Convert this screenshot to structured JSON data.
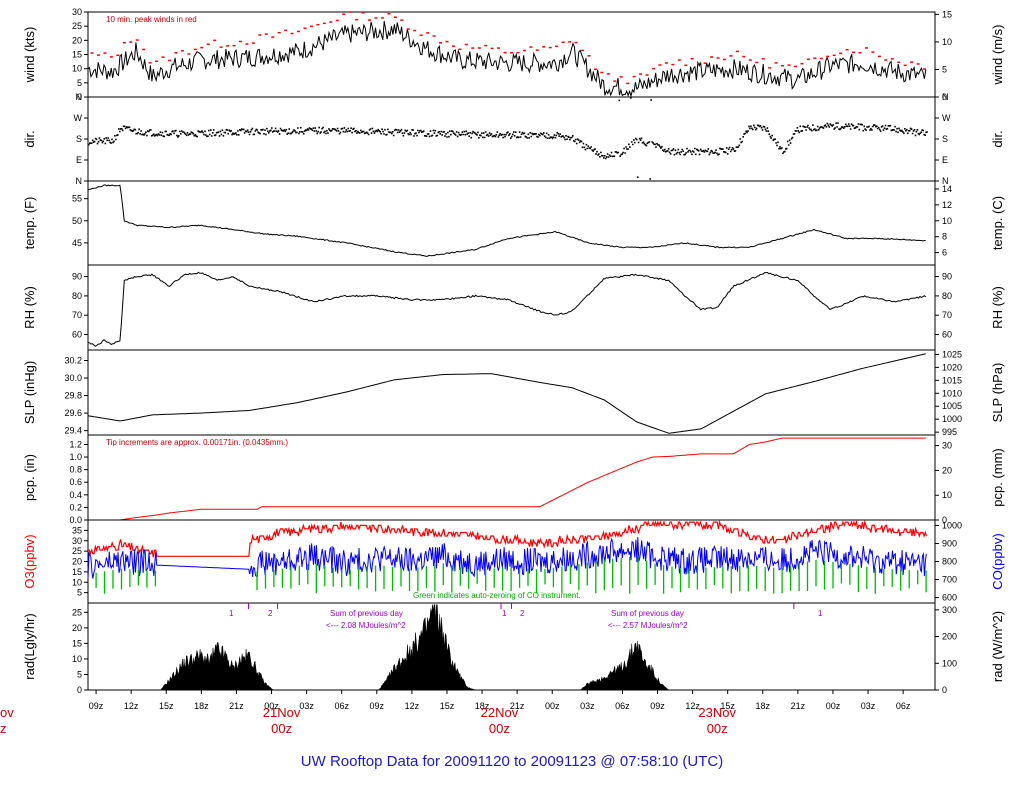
{
  "footer_title": "UW Rooftop Data for 20091120  to  20091123 @ 07:58:10  (UTC)",
  "colors": {
    "series": "#000000",
    "peak": "#ff0000",
    "precip": "#ff0000",
    "o3": "#ff0000",
    "co": "#0000ff",
    "co_zero": "#00bb00",
    "note_purple": "#9900cc",
    "day_label": "#cc0000",
    "footer": "#1a1acc"
  },
  "x_axis": {
    "hour_labels": [
      "09z",
      "12z",
      "15z",
      "18z",
      "21z",
      "00z",
      "03z",
      "06z",
      "09z",
      "12z",
      "15z",
      "18z",
      "21z",
      "00z",
      "03z",
      "06z",
      "09z",
      "12z",
      "15z",
      "18z",
      "21z",
      "00z",
      "03z",
      "06z"
    ],
    "day_labels": [
      {
        "date": "21Nov",
        "hour": "00z"
      },
      {
        "date": "22Nov",
        "hour": "00z"
      },
      {
        "date": "23Nov",
        "hour": "00z"
      }
    ],
    "cut_label_left": {
      "date": "ov",
      "hour": "z"
    }
  },
  "notes": {
    "wind": "10 min. peak winds in red",
    "pcp": "Tip increments are approx. 0.00171in. (0.0435mm.)",
    "co_zero": "Green indicates auto-zeroing of CO instrument.",
    "rad_sum_1_title": "Sum of previous day",
    "rad_sum_1_value": "<--- 2.08 MJoules/m^2",
    "rad_sum_2_title": "Sum of previous day",
    "rad_sum_2_value": "<--- 2.57 MJoules/m^2",
    "rad_markers": [
      "1",
      "2",
      "1",
      "2",
      "1"
    ]
  },
  "chart_data": [
    {
      "type": "line",
      "name": "wind",
      "ylabel": "wind (kts)",
      "ylabel_right": "wind (m/s)",
      "ylim": [
        0,
        30
      ],
      "left_ticks": [
        "0",
        "5",
        "10",
        "15",
        "20",
        "25",
        "30"
      ],
      "right_ticks": [
        "0",
        "5",
        "10",
        "15"
      ],
      "x_hours": [
        0,
        3,
        6,
        8,
        10,
        14,
        20,
        26,
        32,
        38,
        42,
        46,
        52,
        58,
        60,
        64,
        68,
        72,
        76,
        80,
        84,
        88,
        92,
        96,
        100,
        104
      ],
      "series": [
        {
          "values": [
            10,
            9,
            16,
            7,
            10,
            13,
            14,
            16,
            22,
            24,
            17,
            13,
            12,
            12,
            16,
            4,
            3,
            8,
            9,
            10,
            8,
            6,
            11,
            12,
            9,
            7
          ]
        },
        {
          "values": [
            15,
            14,
            22,
            11,
            14,
            18,
            20,
            23,
            29,
            28,
            22,
            18,
            16,
            17,
            21,
            7,
            6,
            12,
            13,
            15,
            12,
            10,
            16,
            17,
            13,
            11
          ]
        }
      ]
    },
    {
      "type": "scatter",
      "name": "dir",
      "ylabel": "dir.",
      "ylabel_right": "dir.",
      "left_ticks": [
        "N",
        "E",
        "S",
        "W",
        "N"
      ],
      "right_ticks": [
        "N",
        "E",
        "S",
        "W",
        "N"
      ],
      "x_hours": [
        0,
        3,
        4,
        6,
        8,
        12,
        20,
        30,
        40,
        50,
        58,
        60,
        62,
        64,
        66,
        68,
        70,
        72,
        78,
        80,
        82,
        84,
        86,
        88,
        92,
        100,
        104
      ],
      "values": [
        172,
        175,
        230,
        215,
        210,
        205,
        215,
        220,
        210,
        200,
        200,
        185,
        140,
        110,
        120,
        180,
        160,
        130,
        130,
        135,
        235,
        230,
        130,
        225,
        240,
        225,
        205
      ]
    },
    {
      "type": "line",
      "name": "temp",
      "ylabel": "temp. (F)",
      "ylabel_right": "temp. (C)",
      "ylim": [
        40,
        59
      ],
      "left_ticks": [
        "45",
        "50",
        "55"
      ],
      "right_ticks": [
        "6",
        "8",
        "10",
        "12",
        "14"
      ],
      "x_hours": [
        0,
        2,
        4,
        4.5,
        6,
        10,
        14,
        18,
        22,
        26,
        32,
        38,
        42,
        48,
        52,
        58,
        62,
        66,
        70,
        74,
        78,
        82,
        86,
        90,
        94,
        98,
        104
      ],
      "values": [
        57,
        58,
        58,
        50,
        49,
        48.5,
        49,
        48,
        47,
        46.5,
        45,
        43,
        42,
        43.5,
        46,
        47.5,
        45,
        44,
        44,
        45,
        44,
        44,
        46,
        48,
        46,
        46,
        45.5
      ]
    },
    {
      "type": "line",
      "name": "rh",
      "ylabel": "RH (%)",
      "ylabel_right": "RH (%)",
      "ylim": [
        52,
        96
      ],
      "left_ticks": [
        "60",
        "70",
        "80",
        "90"
      ],
      "right_ticks": [
        "60",
        "70",
        "80",
        "90"
      ],
      "x_hours": [
        0,
        1,
        2,
        3,
        4,
        4.5,
        6,
        8,
        10,
        12,
        14,
        16,
        18,
        20,
        24,
        28,
        32,
        36,
        40,
        44,
        48,
        52,
        56,
        58,
        60,
        64,
        68,
        72,
        74,
        76,
        78,
        80,
        84,
        88,
        90,
        92,
        94,
        96,
        100,
        104
      ],
      "values": [
        56,
        54,
        57,
        55,
        57,
        88,
        90,
        91,
        85,
        91,
        92,
        88,
        90,
        85,
        82,
        77,
        80,
        80,
        78,
        78,
        80,
        78,
        72,
        70,
        72,
        89,
        91,
        88,
        80,
        73,
        74,
        85,
        92,
        88,
        80,
        73,
        76,
        80,
        77,
        80
      ]
    },
    {
      "type": "line",
      "name": "slp",
      "ylabel": "SLP (inHg)",
      "ylabel_right": "SLP (hPa)",
      "ylim": [
        29.35,
        30.32
      ],
      "left_ticks": [
        "29.4",
        "29.6",
        "29.8",
        "30.0",
        "30.2"
      ],
      "right_ticks": [
        "995",
        "1000",
        "1005",
        "1010",
        "1015",
        "1020",
        "1025"
      ],
      "x_hours": [
        0,
        4,
        8,
        14,
        20,
        26,
        32,
        38,
        44,
        50,
        56,
        60,
        64,
        68,
        72,
        76,
        80,
        84,
        90,
        96,
        104
      ],
      "values": [
        29.57,
        29.51,
        29.58,
        29.6,
        29.63,
        29.72,
        29.84,
        29.98,
        30.04,
        30.05,
        29.95,
        29.89,
        29.75,
        29.5,
        29.37,
        29.42,
        29.62,
        29.82,
        29.96,
        30.11,
        30.28
      ]
    },
    {
      "type": "line",
      "name": "pcp",
      "ylabel": "pcp. (in)",
      "ylabel_right": "pcp. (mm)",
      "ylim": [
        0,
        1.35
      ],
      "left_ticks": [
        "0.0",
        "0.2",
        "0.4",
        "0.6",
        "0.8",
        "1.0",
        "1.2"
      ],
      "right_ticks": [
        "0",
        "10",
        "20",
        "30"
      ],
      "x_hours": [
        0,
        4,
        6,
        8,
        10,
        14,
        18,
        21,
        21.5,
        30,
        40,
        50,
        56,
        62,
        68,
        70,
        72,
        76,
        80,
        82,
        84,
        86,
        88,
        104
      ],
      "values": [
        0,
        0,
        0.04,
        0.07,
        0.11,
        0.17,
        0.17,
        0.17,
        0.21,
        0.21,
        0.21,
        0.21,
        0.21,
        0.6,
        0.92,
        1.0,
        1.01,
        1.05,
        1.05,
        1.2,
        1.24,
        1.3,
        1.3,
        1.3
      ]
    },
    {
      "type": "line",
      "name": "o3_co",
      "ylabel": "O3(ppbv)",
      "ylabel_right": "CO(ppbv)",
      "ylim": [
        0,
        40
      ],
      "left_ticks": [
        "5",
        "10",
        "15",
        "20",
        "25",
        "30",
        "35"
      ],
      "right_ticks": [
        "600",
        "700",
        "800",
        "900",
        "1000"
      ],
      "x_hours": [
        0,
        4,
        8,
        10,
        14,
        18,
        20,
        24,
        28,
        32,
        36,
        40,
        44,
        48,
        52,
        56,
        60,
        64,
        68,
        70,
        74,
        78,
        82,
        86,
        90,
        94,
        98,
        104
      ],
      "series": [
        {
          "name": "O3",
          "values": [
            25,
            28,
            24,
            22,
            22,
            22,
            30,
            34,
            36,
            37,
            36,
            35,
            34,
            32,
            30,
            29,
            30,
            32,
            36,
            38,
            38,
            37,
            32,
            30,
            35,
            38,
            36,
            33
          ]
        },
        {
          "name": "CO",
          "values": [
            770,
            800,
            790,
            790,
            785,
            780,
            780,
            800,
            830,
            790,
            820,
            800,
            830,
            790,
            810,
            795,
            820,
            850,
            870,
            830,
            800,
            810,
            820,
            800,
            850,
            830,
            800,
            790
          ]
        }
      ]
    },
    {
      "type": "area",
      "name": "rad",
      "ylabel": "rad(Lgly/hr)",
      "ylabel_right": "rad (W/m^2)",
      "ylim": [
        0,
        28
      ],
      "left_ticks": [
        "0",
        "5",
        "10",
        "15",
        "20",
        "25"
      ],
      "right_ticks": [
        "0",
        "100",
        "200",
        "300"
      ],
      "x_hours": [
        9,
        10,
        11,
        12,
        14,
        15,
        16,
        17,
        18,
        19,
        20,
        21,
        22,
        23,
        24,
        36,
        37,
        38,
        39,
        40,
        41,
        42,
        43,
        44,
        45,
        46,
        47,
        48,
        61,
        62,
        63,
        64,
        65,
        66,
        67,
        68,
        69,
        70,
        71,
        72
      ],
      "values": [
        0,
        3,
        6,
        9,
        11,
        9,
        13,
        11,
        7,
        10,
        11,
        6,
        2,
        0,
        0,
        0,
        3,
        7,
        10,
        13,
        16,
        20,
        27,
        18,
        10,
        5,
        1,
        0,
        0,
        2,
        3,
        4,
        6,
        7,
        10,
        15,
        9,
        6,
        2,
        0
      ]
    }
  ]
}
